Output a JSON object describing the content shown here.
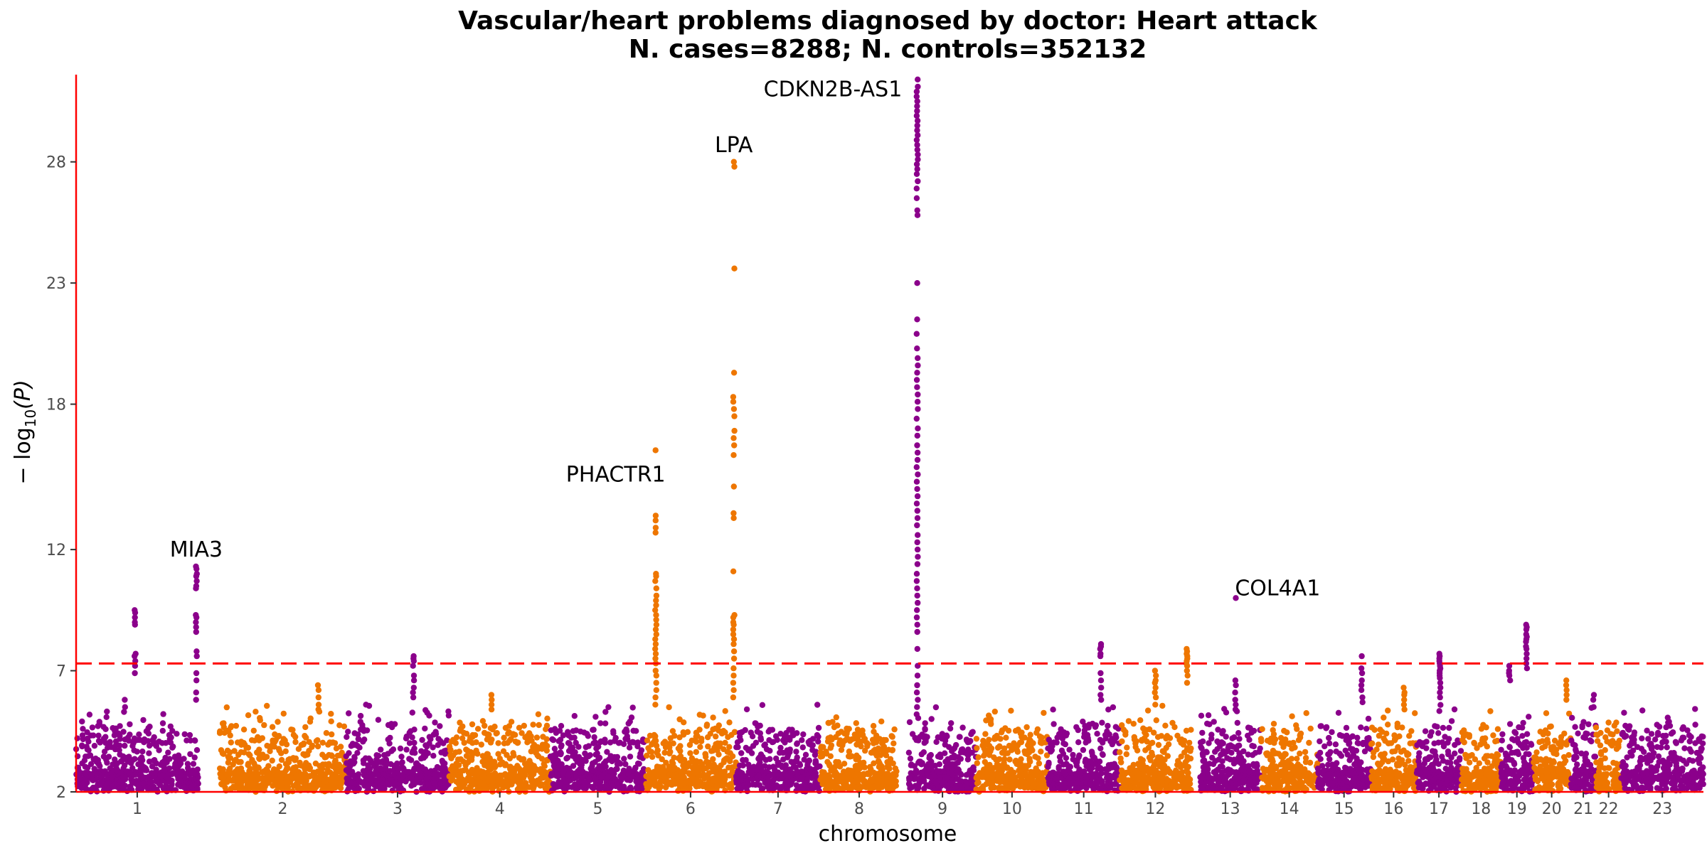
{
  "chart_data": {
    "type": "scatter",
    "title_line1": "Vascular/heart problems diagnosed by doctor: Heart attack",
    "title_line2": "N. cases=8288; N. controls=352132",
    "xlabel": "chromosome",
    "ylabel_prefix": "− log",
    "ylabel_sub": "10",
    "ylabel_suffix": "(P)",
    "ylim": [
      2,
      31.6
    ],
    "yticks": [
      2,
      7,
      12,
      18,
      23,
      28
    ],
    "significance_threshold": 7.3,
    "grid": false,
    "colors": {
      "odd": "#8B008B",
      "even": "#EE7600",
      "axis": "#FF0000",
      "threshold": "#FF0000"
    },
    "chromosomes": [
      {
        "label": "1",
        "xmin": 0.0,
        "xmax": 0.58
      },
      {
        "label": "2",
        "xmin": 0.68,
        "xmax": 1.28
      },
      {
        "label": "3",
        "xmin": 1.28,
        "xmax": 1.77
      },
      {
        "label": "4",
        "xmin": 1.77,
        "xmax": 2.25
      },
      {
        "label": "5",
        "xmin": 2.25,
        "xmax": 2.7
      },
      {
        "label": "6",
        "xmin": 2.7,
        "xmax": 3.13
      },
      {
        "label": "7",
        "xmin": 3.13,
        "xmax": 3.53
      },
      {
        "label": "8",
        "xmin": 3.53,
        "xmax": 3.9
      },
      {
        "label": "9",
        "xmin": 3.95,
        "xmax": 4.27
      },
      {
        "label": "10",
        "xmin": 4.27,
        "xmax": 4.61
      },
      {
        "label": "11",
        "xmin": 4.61,
        "xmax": 4.95
      },
      {
        "label": "12",
        "xmin": 4.95,
        "xmax": 5.29
      },
      {
        "label": "13",
        "xmin": 5.33,
        "xmax": 5.62
      },
      {
        "label": "14",
        "xmin": 5.62,
        "xmax": 5.89
      },
      {
        "label": "15",
        "xmin": 5.89,
        "xmax": 6.14
      },
      {
        "label": "16",
        "xmin": 6.14,
        "xmax": 6.36
      },
      {
        "label": "17",
        "xmin": 6.36,
        "xmax": 6.57
      },
      {
        "label": "18",
        "xmin": 6.57,
        "xmax": 6.76
      },
      {
        "label": "19",
        "xmin": 6.76,
        "xmax": 6.91
      },
      {
        "label": "20",
        "xmin": 6.91,
        "xmax": 7.09
      },
      {
        "label": "21",
        "xmin": 7.09,
        "xmax": 7.21
      },
      {
        "label": "22",
        "xmin": 7.21,
        "xmax": 7.33
      },
      {
        "label": "23",
        "xmin": 7.33,
        "xmax": 7.72
      }
    ],
    "peaks": [
      {
        "chrom": "1",
        "x": 0.28,
        "values": [
          9.5,
          9.4,
          9.2,
          9.0,
          8.9,
          7.7,
          7.6,
          7.4,
          7.2,
          6.9
        ]
      },
      {
        "chrom": "1",
        "x": 0.57,
        "values": [
          11.3,
          11.2,
          11.0,
          10.9,
          10.7,
          10.5,
          10.4,
          9.3,
          9.2,
          9.0,
          8.8,
          8.6,
          7.8,
          7.6,
          6.9,
          6.6,
          6.1,
          5.8
        ]
      },
      {
        "chrom": "3",
        "x": 1.6,
        "values": [
          7.6,
          7.5,
          7.4,
          7.2,
          6.8,
          6.6,
          6.3,
          6.1,
          5.9
        ]
      },
      {
        "chrom": "6",
        "x": 2.75,
        "values": [
          16.1,
          13.4,
          13.2,
          12.9,
          12.7,
          11.0,
          10.9,
          10.7,
          10.4,
          10.1,
          9.9,
          9.7,
          9.5,
          9.3,
          9.1,
          8.9,
          8.7,
          8.5,
          8.3,
          8.1,
          7.9,
          7.7,
          7.5,
          7.3,
          7.0,
          6.8,
          6.5,
          6.2,
          5.9,
          5.6
        ]
      },
      {
        "chrom": "6",
        "x": 3.12,
        "values": [
          28.0,
          27.8,
          23.6,
          19.3,
          18.3,
          18.1,
          17.8,
          17.5,
          16.9,
          16.6,
          16.3,
          15.9,
          14.6,
          13.5,
          13.3,
          11.1,
          9.3,
          9.2,
          9.0,
          8.9,
          8.7,
          8.5,
          8.3,
          8.1,
          7.8,
          7.5,
          7.1,
          6.8,
          6.5,
          6.2,
          5.9
        ]
      },
      {
        "chrom": "9",
        "x": 3.99,
        "values": [
          31.4,
          31.1,
          30.9,
          30.7,
          30.5,
          30.3,
          30.1,
          29.9,
          29.7,
          29.5,
          29.3,
          29.1,
          28.9,
          28.7,
          28.5,
          28.3,
          28.1,
          27.9,
          27.7,
          27.5,
          27.2,
          26.9,
          26.5,
          26.0,
          25.8,
          23.0,
          21.5,
          20.9,
          20.3,
          19.9,
          19.6,
          19.3,
          19.0,
          18.7,
          18.4,
          18.1,
          17.8,
          17.4,
          17.0,
          16.7,
          16.3,
          16.0,
          15.7,
          15.4,
          15.1,
          14.8,
          14.5,
          14.2,
          13.9,
          13.6,
          13.3,
          13.0,
          12.6,
          12.3,
          12.0,
          11.7,
          11.4,
          11.0,
          10.7,
          10.4,
          10.1,
          9.8,
          9.5,
          9.2,
          8.9,
          8.6,
          7.9,
          7.2,
          6.8,
          6.4,
          6.1,
          5.8,
          5.5,
          5.2
        ]
      },
      {
        "chrom": "11",
        "x": 4.86,
        "values": [
          8.1,
          8.0,
          7.9,
          7.7,
          7.6,
          6.9,
          6.6,
          6.3,
          6.0,
          5.8
        ]
      },
      {
        "chrom": "12",
        "x": 5.27,
        "values": [
          7.9,
          7.8,
          7.7,
          7.6,
          7.5,
          7.4,
          7.3,
          7.2,
          7.0,
          6.8,
          6.5
        ]
      },
      {
        "chrom": "12",
        "x": 5.12,
        "values": [
          7.0,
          6.8,
          6.6,
          6.5,
          6.3,
          6.1,
          5.9,
          5.6
        ]
      },
      {
        "chrom": "13",
        "x": 5.5,
        "values": [
          10.0,
          6.6,
          6.4,
          6.1,
          5.8,
          5.6,
          5.4
        ]
      },
      {
        "chrom": "15",
        "x": 6.1,
        "values": [
          7.6,
          7.1,
          6.9,
          6.6,
          6.4,
          6.2,
          5.9,
          5.7
        ]
      },
      {
        "chrom": "16",
        "x": 6.3,
        "values": [
          6.3,
          6.1,
          6.0,
          5.8,
          5.6,
          5.4
        ]
      },
      {
        "chrom": "17",
        "x": 6.47,
        "values": [
          7.7,
          7.6,
          7.5,
          7.4,
          7.3,
          7.2,
          7.1,
          7.0,
          6.9,
          6.8,
          6.7,
          6.5,
          6.3,
          6.1,
          5.9
        ]
      },
      {
        "chrom": "19",
        "x": 6.8,
        "values": [
          7.2,
          7.0,
          6.9,
          6.8,
          6.6
        ]
      },
      {
        "chrom": "19",
        "x": 6.88,
        "values": [
          8.9,
          8.8,
          8.7,
          8.5,
          8.4,
          8.3,
          8.2,
          8.0,
          7.9,
          7.7,
          7.5,
          7.3,
          7.1
        ]
      },
      {
        "chrom": "20",
        "x": 7.07,
        "values": [
          6.6,
          6.4,
          6.2,
          6.0,
          5.8
        ]
      },
      {
        "chrom": "4",
        "x": 1.97,
        "values": [
          6.0,
          5.8,
          5.6,
          5.4
        ]
      },
      {
        "chrom": "2",
        "x": 1.15,
        "values": [
          6.4,
          6.2,
          5.9,
          5.6,
          5.4
        ]
      },
      {
        "chrom": "1",
        "x": 0.23,
        "values": [
          5.8,
          5.5,
          5.3
        ]
      },
      {
        "chrom": "10",
        "x": 4.34,
        "values": [
          5.0,
          4.9,
          4.8
        ]
      },
      {
        "chrom": "21",
        "x": 7.2,
        "values": [
          6.0,
          5.8,
          5.5
        ]
      }
    ],
    "annotations": [
      {
        "text": "MIA3",
        "x": 0.57,
        "y": 12.0
      },
      {
        "text": "PHACTR1",
        "x": 2.56,
        "y": 15.1
      },
      {
        "text": "LPA",
        "x": 3.12,
        "y": 28.7
      },
      {
        "text": "CDKN2B-AS1",
        "x": 3.59,
        "y": 31.0
      },
      {
        "text": "COL4A1",
        "x": 5.7,
        "y": 10.4
      }
    ]
  }
}
